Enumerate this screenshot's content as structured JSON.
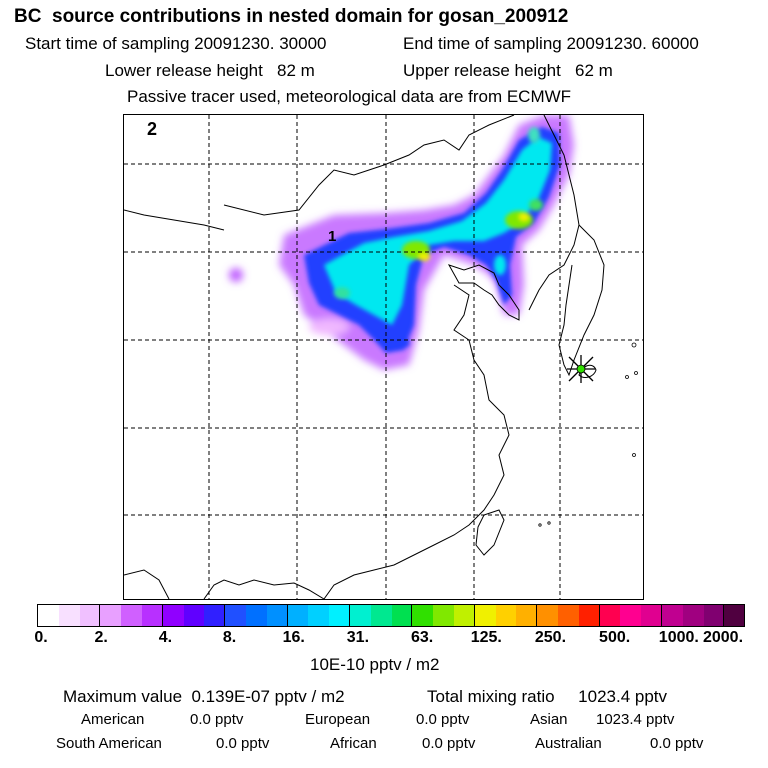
{
  "header": {
    "title": "BC  source contributions in nested domain for gosan_200912",
    "start_time": "Start time of sampling 20091230. 30000",
    "end_time": "End time of sampling 20091230. 60000",
    "lower_height": "Lower release height   82 m",
    "upper_height": "Upper release height   62 m",
    "tracer_note": "Passive tracer used, meteorological data are from ECMWF"
  },
  "map": {
    "labels": {
      "panel_number": "2",
      "point_label": "1"
    },
    "receptor_marker": "star-icon",
    "colors": {
      "plume_low": "#b060ff",
      "plume_mid": "#1060ff",
      "plume_core": "#00f0e0",
      "plume_peak": "#90e800",
      "grid": "#000000"
    }
  },
  "colorbar": {
    "colors": [
      "#ffffff",
      "#f8e0ff",
      "#f0c0ff",
      "#e8a0ff",
      "#d060ff",
      "#b830ff",
      "#9000ff",
      "#6000ff",
      "#3020ff",
      "#2050ff",
      "#0070ff",
      "#0090ff",
      "#00b0ff",
      "#00d0ff",
      "#00f0ff",
      "#00f0d0",
      "#00e890",
      "#00e050",
      "#30e000",
      "#80e800",
      "#c0f000",
      "#f0f000",
      "#ffd000",
      "#ffb000",
      "#ff9000",
      "#ff6000",
      "#ff2000",
      "#ff0050",
      "#ff0090",
      "#e00090",
      "#c00090",
      "#a00080",
      "#800070",
      "#500040"
    ],
    "tick_labels": [
      "0.",
      "2.",
      "4.",
      "8.",
      "16.",
      "31.",
      "63.",
      "125.",
      "250.",
      "500.",
      "1000.",
      "2000."
    ],
    "unit_label": "10E-10 pptv / m2"
  },
  "stats": {
    "max_value": "Maximum value  0.139E-07 pptv / m2",
    "total_mixing": "Total mixing ratio     1023.4 pptv",
    "regions": [
      {
        "name": "American",
        "value": "0.0 pptv"
      },
      {
        "name": "European",
        "value": "0.0 pptv"
      },
      {
        "name": "Asian",
        "value": "1023.4 pptv"
      },
      {
        "name": "South American",
        "value": "0.0 pptv"
      },
      {
        "name": "African",
        "value": "0.0 pptv"
      },
      {
        "name": "Australian",
        "value": "0.0 pptv"
      }
    ]
  }
}
